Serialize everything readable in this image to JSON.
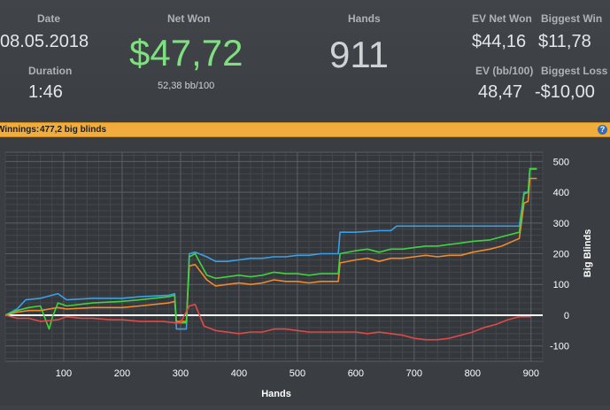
{
  "summary": {
    "date_label": "Date",
    "date": "08.05.2018",
    "duration_label": "Duration",
    "duration": "1:46",
    "net_won_label": "Net Won",
    "net_won": "$47,72",
    "bb100": "52,38 bb/100",
    "hands_label": "Hands",
    "hands": "911",
    "ev_net_won_label": "EV Net Won",
    "ev_net_won": "$44,16",
    "ev_bb100_label": "EV (bb/100)",
    "ev_bb100": "48,47",
    "biggest_win_label": "Biggest Win",
    "biggest_win": "$11,78",
    "biggest_loss_label": "Biggest Loss",
    "biggest_loss": "-$10,00"
  },
  "banner": {
    "label": "Winnings:",
    "value": "477,2 big blinds",
    "help": "?"
  },
  "colors": {
    "net_won": "#7fe07f",
    "banner": "#f0ad3e",
    "green_series": "#3fd43f",
    "blue_series": "#3aa0e8",
    "orange_series": "#f08a2c",
    "red_series": "#e04a48"
  },
  "chart_data": {
    "type": "line",
    "xlabel": "Hands",
    "ylabel": "Big Blinds",
    "xlim": [
      0,
      920
    ],
    "ylim": [
      -150,
      530
    ],
    "xticks": [
      100,
      200,
      300,
      400,
      500,
      600,
      700,
      800,
      900
    ],
    "yticks": [
      -100,
      0,
      100,
      200,
      300,
      400,
      500
    ],
    "grid": true,
    "series": [
      {
        "color": "#3aa0e8",
        "points": [
          [
            0,
            0
          ],
          [
            20,
            20
          ],
          [
            35,
            50
          ],
          [
            60,
            55
          ],
          [
            90,
            70
          ],
          [
            105,
            50
          ],
          [
            150,
            55
          ],
          [
            200,
            55
          ],
          [
            230,
            60
          ],
          [
            280,
            65
          ],
          [
            290,
            70
          ],
          [
            293,
            -45
          ],
          [
            310,
            -45
          ],
          [
            315,
            200
          ],
          [
            325,
            205
          ],
          [
            345,
            190
          ],
          [
            360,
            175
          ],
          [
            380,
            175
          ],
          [
            400,
            180
          ],
          [
            420,
            185
          ],
          [
            440,
            185
          ],
          [
            460,
            190
          ],
          [
            480,
            190
          ],
          [
            500,
            195
          ],
          [
            520,
            195
          ],
          [
            540,
            200
          ],
          [
            560,
            200
          ],
          [
            570,
            200
          ],
          [
            573,
            270
          ],
          [
            600,
            270
          ],
          [
            640,
            275
          ],
          [
            660,
            275
          ],
          [
            670,
            290
          ],
          [
            700,
            290
          ],
          [
            750,
            290
          ],
          [
            800,
            290
          ],
          [
            850,
            290
          ],
          [
            880,
            290
          ],
          [
            888,
            400
          ],
          [
            895,
            400
          ],
          [
            898,
            475
          ],
          [
            910,
            475
          ]
        ]
      },
      {
        "color": "#f08a2c",
        "points": [
          [
            0,
            0
          ],
          [
            20,
            10
          ],
          [
            40,
            15
          ],
          [
            60,
            15
          ],
          [
            90,
            25
          ],
          [
            105,
            20
          ],
          [
            150,
            25
          ],
          [
            200,
            25
          ],
          [
            230,
            30
          ],
          [
            280,
            40
          ],
          [
            290,
            45
          ],
          [
            293,
            -20
          ],
          [
            310,
            -20
          ],
          [
            315,
            160
          ],
          [
            325,
            165
          ],
          [
            345,
            115
          ],
          [
            360,
            95
          ],
          [
            380,
            100
          ],
          [
            400,
            105
          ],
          [
            420,
            100
          ],
          [
            440,
            105
          ],
          [
            460,
            115
          ],
          [
            480,
            110
          ],
          [
            500,
            110
          ],
          [
            520,
            105
          ],
          [
            540,
            110
          ],
          [
            560,
            110
          ],
          [
            570,
            110
          ],
          [
            573,
            170
          ],
          [
            600,
            180
          ],
          [
            620,
            185
          ],
          [
            640,
            175
          ],
          [
            660,
            185
          ],
          [
            680,
            185
          ],
          [
            700,
            190
          ],
          [
            720,
            195
          ],
          [
            740,
            190
          ],
          [
            760,
            195
          ],
          [
            780,
            195
          ],
          [
            800,
            205
          ],
          [
            830,
            215
          ],
          [
            850,
            225
          ],
          [
            880,
            250
          ],
          [
            888,
            365
          ],
          [
            895,
            370
          ],
          [
            898,
            445
          ],
          [
            910,
            445
          ]
        ]
      },
      {
        "color": "#3fd43f",
        "points": [
          [
            0,
            0
          ],
          [
            20,
            15
          ],
          [
            40,
            25
          ],
          [
            60,
            30
          ],
          [
            75,
            -45
          ],
          [
            80,
            -10
          ],
          [
            90,
            40
          ],
          [
            105,
            30
          ],
          [
            150,
            40
          ],
          [
            200,
            45
          ],
          [
            230,
            50
          ],
          [
            280,
            60
          ],
          [
            290,
            65
          ],
          [
            293,
            -25
          ],
          [
            310,
            -25
          ],
          [
            315,
            190
          ],
          [
            325,
            200
          ],
          [
            345,
            130
          ],
          [
            360,
            120
          ],
          [
            380,
            125
          ],
          [
            400,
            130
          ],
          [
            420,
            125
          ],
          [
            440,
            130
          ],
          [
            460,
            140
          ],
          [
            480,
            135
          ],
          [
            500,
            135
          ],
          [
            520,
            130
          ],
          [
            540,
            135
          ],
          [
            560,
            135
          ],
          [
            570,
            135
          ],
          [
            573,
            200
          ],
          [
            600,
            210
          ],
          [
            620,
            215
          ],
          [
            640,
            205
          ],
          [
            660,
            215
          ],
          [
            680,
            215
          ],
          [
            700,
            220
          ],
          [
            720,
            225
          ],
          [
            740,
            225
          ],
          [
            760,
            230
          ],
          [
            780,
            235
          ],
          [
            800,
            240
          ],
          [
            830,
            245
          ],
          [
            850,
            255
          ],
          [
            880,
            270
          ],
          [
            888,
            395
          ],
          [
            895,
            400
          ],
          [
            898,
            477
          ],
          [
            910,
            477
          ]
        ]
      },
      {
        "color": "#e04a48",
        "points": [
          [
            0,
            0
          ],
          [
            20,
            -10
          ],
          [
            40,
            -10
          ],
          [
            60,
            -20
          ],
          [
            90,
            -15
          ],
          [
            105,
            -5
          ],
          [
            130,
            -10
          ],
          [
            150,
            -10
          ],
          [
            180,
            -15
          ],
          [
            200,
            -15
          ],
          [
            230,
            -20
          ],
          [
            250,
            -20
          ],
          [
            270,
            -20
          ],
          [
            290,
            -25
          ],
          [
            300,
            -25
          ],
          [
            315,
            30
          ],
          [
            325,
            35
          ],
          [
            340,
            -35
          ],
          [
            360,
            -50
          ],
          [
            380,
            -55
          ],
          [
            400,
            -60
          ],
          [
            420,
            -55
          ],
          [
            440,
            -55
          ],
          [
            460,
            -45
          ],
          [
            480,
            -45
          ],
          [
            500,
            -50
          ],
          [
            520,
            -55
          ],
          [
            540,
            -55
          ],
          [
            560,
            -55
          ],
          [
            570,
            -55
          ],
          [
            600,
            -55
          ],
          [
            620,
            -60
          ],
          [
            640,
            -55
          ],
          [
            660,
            -60
          ],
          [
            680,
            -65
          ],
          [
            700,
            -75
          ],
          [
            720,
            -80
          ],
          [
            740,
            -80
          ],
          [
            760,
            -75
          ],
          [
            780,
            -65
          ],
          [
            800,
            -55
          ],
          [
            820,
            -40
          ],
          [
            840,
            -30
          ],
          [
            860,
            -15
          ],
          [
            880,
            -5
          ],
          [
            900,
            -5
          ]
        ]
      }
    ]
  }
}
